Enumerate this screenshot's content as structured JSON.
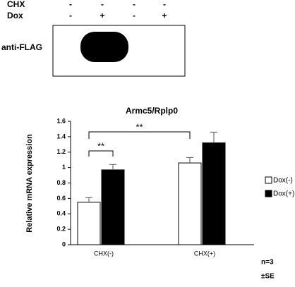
{
  "blot": {
    "row_labels": [
      "CHX",
      "Dox"
    ],
    "rows": [
      [
        "-",
        "-",
        "-",
        "-"
      ],
      [
        "-",
        "+",
        "-",
        "+"
      ]
    ],
    "antibody": "anti-FLAG"
  },
  "chart_data": {
    "type": "bar",
    "title": "Armc5/Rplp0",
    "y_label": "Relative mRNA expression",
    "categories": [
      "CHX(-)",
      "CHX(+)"
    ],
    "series": [
      {
        "name": "Dox(-)",
        "color": "#ffffff",
        "values": [
          0.55,
          1.06
        ],
        "errors": [
          0.06,
          0.07
        ]
      },
      {
        "name": "Dox(+)",
        "color": "#000000",
        "values": [
          0.97,
          1.32
        ],
        "errors": [
          0.07,
          0.14
        ]
      }
    ],
    "ylim": [
      0,
      1.6
    ],
    "yticks": [
      0,
      0.2,
      0.4,
      0.6,
      0.8,
      1,
      1.2,
      1.4,
      1.6
    ],
    "annotations": [
      "**",
      "**"
    ],
    "notes": [
      "n=3",
      "±SE"
    ]
  }
}
